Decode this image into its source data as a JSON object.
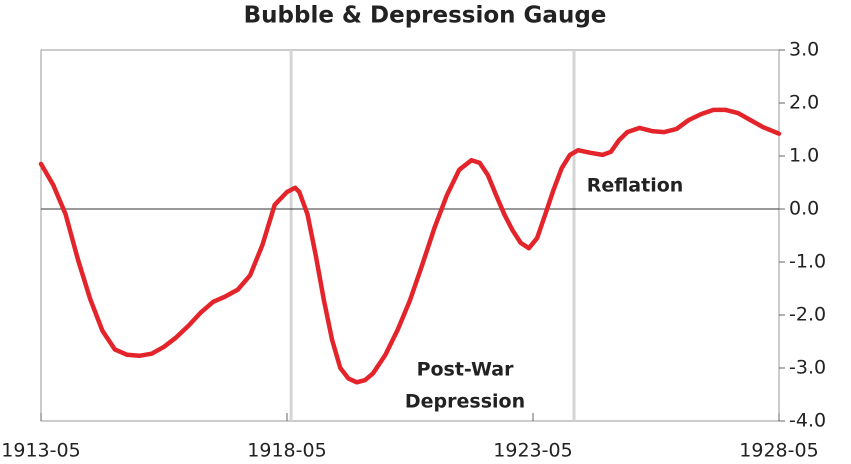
{
  "chart_data": {
    "type": "line",
    "title": "Bubble & Depression Gauge",
    "x": [
      "1913-05",
      "1913-08",
      "1913-11",
      "1914-02",
      "1914-05",
      "1914-08",
      "1914-11",
      "1915-02",
      "1915-05",
      "1915-08",
      "1915-11",
      "1916-02",
      "1916-05",
      "1916-08",
      "1916-11",
      "1917-02",
      "1917-05",
      "1917-08",
      "1917-11",
      "1918-02",
      "1918-05",
      "1918-07",
      "1918-08",
      "1918-10",
      "1918-12",
      "1919-02",
      "1919-04",
      "1919-06",
      "1919-08",
      "1919-10",
      "1919-12",
      "1920-02",
      "1920-05",
      "1920-08",
      "1920-11",
      "1921-02",
      "1921-05",
      "1921-08",
      "1921-11",
      "1922-02",
      "1922-04",
      "1922-06",
      "1922-08",
      "1922-10",
      "1922-12",
      "1923-02",
      "1923-04",
      "1923-06",
      "1923-08",
      "1923-10",
      "1923-12",
      "1924-02",
      "1924-04",
      "1924-07",
      "1924-10",
      "1924-12",
      "1925-02",
      "1925-04",
      "1925-07",
      "1925-10",
      "1926-01",
      "1926-04",
      "1926-07",
      "1926-10",
      "1927-01",
      "1927-04",
      "1927-07",
      "1927-10",
      "1928-01",
      "1928-05"
    ],
    "series": [
      {
        "color": "#e3242b",
        "values": [
          0.85,
          0.45,
          -0.1,
          -0.95,
          -1.7,
          -2.3,
          -2.65,
          -2.75,
          -2.77,
          -2.73,
          -2.6,
          -2.42,
          -2.2,
          -1.95,
          -1.75,
          -1.65,
          -1.52,
          -1.25,
          -0.68,
          0.08,
          0.32,
          0.4,
          0.32,
          -0.1,
          -0.87,
          -1.72,
          -2.47,
          -3.0,
          -3.2,
          -3.27,
          -3.23,
          -3.1,
          -2.75,
          -2.28,
          -1.72,
          -1.05,
          -0.35,
          0.26,
          0.74,
          0.92,
          0.87,
          0.64,
          0.26,
          -0.1,
          -0.4,
          -0.64,
          -0.74,
          -0.55,
          -0.1,
          0.36,
          0.77,
          1.02,
          1.11,
          1.06,
          1.02,
          1.08,
          1.3,
          1.45,
          1.53,
          1.47,
          1.45,
          1.51,
          1.68,
          1.79,
          1.87,
          1.87,
          1.81,
          1.68,
          1.55,
          1.42
        ]
      }
    ],
    "xlim": [
      "1913-05",
      "1928-05"
    ],
    "xticks": [
      "1913-05",
      "1918-05",
      "1923-05",
      "1928-05"
    ],
    "ylim": [
      -4,
      3
    ],
    "yticks": [
      {
        "value": -4,
        "label": "-4.0"
      },
      {
        "value": -3,
        "label": "-3.0"
      },
      {
        "value": -2,
        "label": "-2.0"
      },
      {
        "value": -1,
        "label": "-1.0"
      },
      {
        "value": 0,
        "label": "0.0"
      },
      {
        "value": 1,
        "label": "1.0"
      },
      {
        "value": 2,
        "label": "2.0"
      },
      {
        "value": 3,
        "label": "3.0"
      }
    ],
    "vlines": [
      "1918-06",
      "1924-03"
    ],
    "annotations": [
      "Reflation",
      "Post-War",
      "Depression"
    ]
  }
}
